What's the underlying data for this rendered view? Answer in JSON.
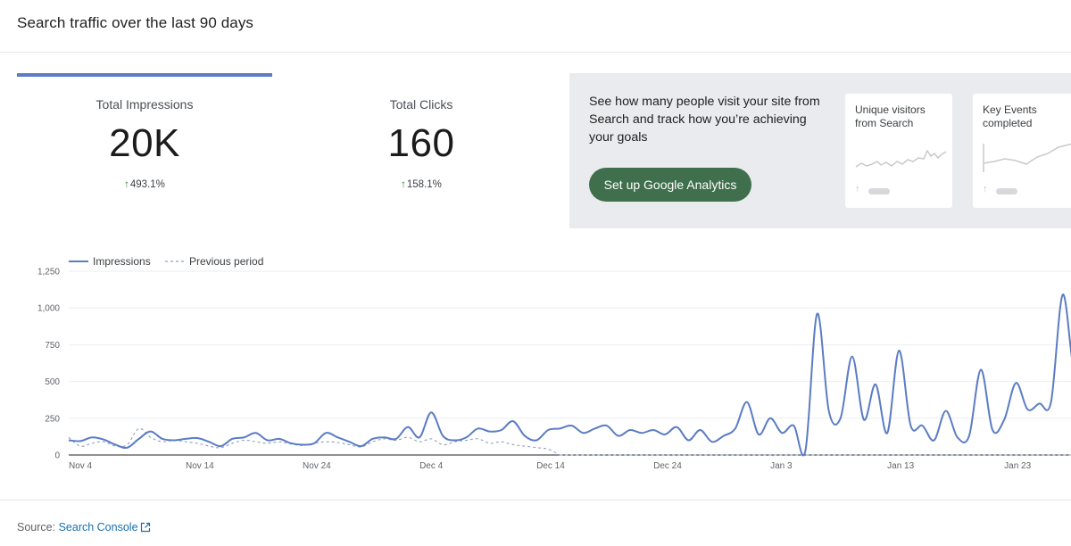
{
  "header": {
    "title": "Search traffic over the last 90 days"
  },
  "metrics": [
    {
      "label": "Total Impressions",
      "value": "20K",
      "delta": "493.1%",
      "delta_direction": "up"
    },
    {
      "label": "Total Clicks",
      "value": "160",
      "delta": "158.1%",
      "delta_direction": "up"
    }
  ],
  "promo": {
    "text": "See how many people visit your site from Search and track how you’re achieving your goals",
    "button_label": "Set up Google Analytics",
    "button_color": "#3f6f4c",
    "cards": [
      {
        "title": "Unique visitors from Search",
        "icon": "arrow-up-icon"
      },
      {
        "title": "Key Events completed",
        "icon": "arrow-up-icon"
      }
    ]
  },
  "legend": {
    "impressions": "Impressions",
    "previous": "Previous period"
  },
  "chart_data": {
    "type": "line",
    "ylim": [
      0,
      1250
    ],
    "yticks": [
      "0",
      "250",
      "500",
      "750",
      "1,000",
      "1,250"
    ],
    "xticks": [
      "Nov 4",
      "Nov 14",
      "Nov 24",
      "Dec 4",
      "Dec 14",
      "Dec 24",
      "Jan 3",
      "Jan 13",
      "Jan 23"
    ],
    "series": [
      {
        "name": "Impressions",
        "color": "#5b7cc4",
        "style": "solid",
        "values": [
          100,
          95,
          120,
          105,
          70,
          50,
          110,
          160,
          110,
          100,
          110,
          115,
          90,
          60,
          110,
          120,
          150,
          100,
          110,
          80,
          70,
          80,
          150,
          120,
          90,
          60,
          110,
          120,
          110,
          190,
          120,
          290,
          130,
          100,
          120,
          180,
          160,
          170,
          230,
          130,
          100,
          170,
          180,
          200,
          150,
          180,
          200,
          130,
          170,
          150,
          170,
          140,
          190,
          100,
          170,
          90,
          130,
          180,
          360,
          140,
          250,
          150,
          200,
          30,
          960,
          300,
          250,
          670,
          240,
          480,
          150,
          710,
          200,
          200,
          100,
          300,
          120,
          130,
          580,
          170,
          240,
          490,
          310,
          350,
          360,
          1090,
          580,
          830,
          620
        ]
      },
      {
        "name": "Previous period",
        "color": "#8fa0bd",
        "style": "dashed",
        "values": [
          120,
          60,
          80,
          90,
          60,
          70,
          180,
          120,
          90,
          100,
          90,
          80,
          60,
          50,
          80,
          100,
          90,
          80,
          90,
          75,
          65,
          80,
          90,
          85,
          70,
          55,
          90,
          110,
          100,
          120,
          90,
          110,
          70,
          90,
          100,
          110,
          80,
          90,
          70,
          60,
          50,
          40,
          0
        ]
      }
    ],
    "grid": true,
    "legend_position": "top-left"
  },
  "footer": {
    "source_label": "Source:",
    "source_link": "Search Console",
    "icon": "external-link-icon"
  }
}
